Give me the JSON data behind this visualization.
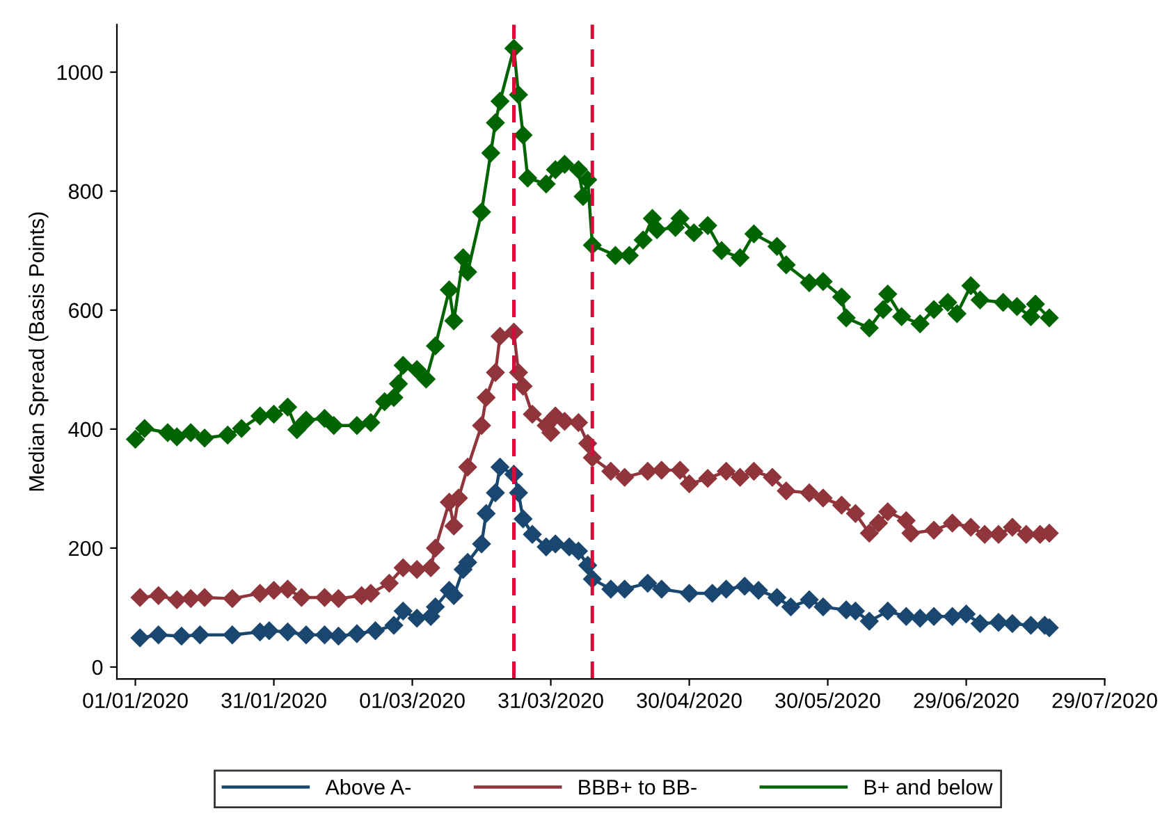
{
  "chart_data": {
    "type": "line",
    "ylabel": "Median Spread (Basis Points)",
    "marker": "diamond",
    "line_style": "solid",
    "grid": false,
    "legend": "bottom",
    "xlim": [
      "2019-12-28",
      "2020-07-29"
    ],
    "xticks": [
      {
        "value": "2020-01-01",
        "label": "01/01/2020"
      },
      {
        "value": "2020-01-31",
        "label": "31/01/2020"
      },
      {
        "value": "2020-03-01",
        "label": "01/03/2020"
      },
      {
        "value": "2020-03-31",
        "label": "31/03/2020"
      },
      {
        "value": "2020-04-30",
        "label": "30/04/2020"
      },
      {
        "value": "2020-05-30",
        "label": "30/05/2020"
      },
      {
        "value": "2020-06-29",
        "label": "29/06/2020"
      },
      {
        "value": "2020-07-29",
        "label": "29/07/2020"
      }
    ],
    "ylim": [
      -20,
      1080
    ],
    "yticks": [
      0,
      200,
      400,
      600,
      800,
      1000
    ],
    "ref_lines": [
      {
        "axis": "x",
        "value": "2020-03-23",
        "color": "#d0103a",
        "line_style": "dashed"
      },
      {
        "axis": "x",
        "value": "2020-04-09",
        "color": "#d0103a",
        "line_style": "dashed"
      }
    ],
    "series": [
      {
        "name": "Above A-",
        "color": "#1a476f",
        "x": [
          "2020-01-02",
          "2020-01-06",
          "2020-01-11",
          "2020-01-15",
          "2020-01-22",
          "2020-01-28",
          "2020-01-30",
          "2020-02-03",
          "2020-02-07",
          "2020-02-11",
          "2020-02-14",
          "2020-02-18",
          "2020-02-22",
          "2020-02-26",
          "2020-02-28",
          "2020-03-02",
          "2020-03-05",
          "2020-03-06",
          "2020-03-09",
          "2020-03-10",
          "2020-03-12",
          "2020-03-13",
          "2020-03-16",
          "2020-03-17",
          "2020-03-19",
          "2020-03-20",
          "2020-03-23",
          "2020-03-24",
          "2020-03-25",
          "2020-03-27",
          "2020-03-30",
          "2020-04-01",
          "2020-04-04",
          "2020-04-06",
          "2020-04-08",
          "2020-04-09",
          "2020-04-13",
          "2020-04-16",
          "2020-04-21",
          "2020-04-24",
          "2020-04-30",
          "2020-05-05",
          "2020-05-08",
          "2020-05-12",
          "2020-05-15",
          "2020-05-19",
          "2020-05-22",
          "2020-05-26",
          "2020-05-29",
          "2020-06-03",
          "2020-06-05",
          "2020-06-08",
          "2020-06-12",
          "2020-06-16",
          "2020-06-19",
          "2020-06-22",
          "2020-06-26",
          "2020-06-29",
          "2020-07-02",
          "2020-07-06",
          "2020-07-09",
          "2020-07-13",
          "2020-07-16",
          "2020-07-17"
        ],
        "values": [
          49,
          54,
          52,
          54,
          54,
          59,
          61,
          59,
          54,
          54,
          52,
          56,
          61,
          70,
          94,
          82,
          85,
          101,
          129,
          120,
          164,
          176,
          207,
          258,
          293,
          336,
          324,
          293,
          249,
          223,
          202,
          207,
          202,
          195,
          171,
          148,
          131,
          131,
          141,
          131,
          124,
          124,
          131,
          136,
          129,
          117,
          101,
          113,
          101,
          96,
          94,
          77,
          94,
          85,
          82,
          85,
          85,
          89,
          73,
          75,
          73,
          70,
          70,
          66
        ]
      },
      {
        "name": "BBB+ to BB-",
        "color": "#90353b",
        "x": [
          "2020-01-02",
          "2020-01-06",
          "2020-01-10",
          "2020-01-13",
          "2020-01-16",
          "2020-01-22",
          "2020-01-28",
          "2020-01-31",
          "2020-02-03",
          "2020-02-06",
          "2020-02-11",
          "2020-02-14",
          "2020-02-19",
          "2020-02-21",
          "2020-02-25",
          "2020-02-28",
          "2020-03-02",
          "2020-03-05",
          "2020-03-06",
          "2020-03-09",
          "2020-03-10",
          "2020-03-11",
          "2020-03-13",
          "2020-03-16",
          "2020-03-17",
          "2020-03-19",
          "2020-03-20",
          "2020-03-23",
          "2020-03-24",
          "2020-03-25",
          "2020-03-27",
          "2020-03-30",
          "2020-03-31",
          "2020-04-01",
          "2020-04-03",
          "2020-04-06",
          "2020-04-08",
          "2020-04-09",
          "2020-04-13",
          "2020-04-16",
          "2020-04-21",
          "2020-04-24",
          "2020-04-28",
          "2020-04-30",
          "2020-05-04",
          "2020-05-08",
          "2020-05-11",
          "2020-05-14",
          "2020-05-18",
          "2020-05-21",
          "2020-05-26",
          "2020-05-29",
          "2020-06-02",
          "2020-06-05",
          "2020-06-08",
          "2020-06-10",
          "2020-06-12",
          "2020-06-16",
          "2020-06-17",
          "2020-06-22",
          "2020-06-26",
          "2020-06-30",
          "2020-07-03",
          "2020-07-06",
          "2020-07-09",
          "2020-07-12",
          "2020-07-15",
          "2020-07-17"
        ],
        "values": [
          117,
          120,
          113,
          115,
          117,
          115,
          124,
          129,
          131,
          117,
          117,
          115,
          120,
          124,
          141,
          167,
          164,
          167,
          200,
          277,
          237,
          284,
          336,
          406,
          453,
          495,
          556,
          563,
          495,
          472,
          425,
          406,
          394,
          422,
          413,
          411,
          376,
          352,
          329,
          319,
          329,
          331,
          331,
          308,
          317,
          329,
          319,
          329,
          319,
          296,
          293,
          284,
          272,
          258,
          225,
          242,
          261,
          246,
          225,
          230,
          242,
          235,
          223,
          223,
          235,
          223,
          223,
          225
        ]
      },
      {
        "name": "B+ and below",
        "color": "#006400",
        "x": [
          "2020-01-01",
          "2020-01-03",
          "2020-01-08",
          "2020-01-10",
          "2020-01-13",
          "2020-01-16",
          "2020-01-21",
          "2020-01-24",
          "2020-01-28",
          "2020-01-31",
          "2020-02-03",
          "2020-02-05",
          "2020-02-07",
          "2020-02-11",
          "2020-02-13",
          "2020-02-18",
          "2020-02-21",
          "2020-02-24",
          "2020-02-26",
          "2020-02-27",
          "2020-02-28",
          "2020-03-02",
          "2020-03-04",
          "2020-03-06",
          "2020-03-09",
          "2020-03-10",
          "2020-03-12",
          "2020-03-13",
          "2020-03-16",
          "2020-03-18",
          "2020-03-19",
          "2020-03-20",
          "2020-03-23",
          "2020-03-24",
          "2020-03-25",
          "2020-03-26",
          "2020-03-30",
          "2020-04-01",
          "2020-04-03",
          "2020-04-06",
          "2020-04-07",
          "2020-04-08",
          "2020-04-09",
          "2020-04-14",
          "2020-04-17",
          "2020-04-20",
          "2020-04-22",
          "2020-04-23",
          "2020-04-27",
          "2020-04-28",
          "2020-05-01",
          "2020-05-04",
          "2020-05-07",
          "2020-05-11",
          "2020-05-14",
          "2020-05-19",
          "2020-05-21",
          "2020-05-26",
          "2020-05-29",
          "2020-06-02",
          "2020-06-03",
          "2020-06-08",
          "2020-06-11",
          "2020-06-12",
          "2020-06-15",
          "2020-06-19",
          "2020-06-22",
          "2020-06-25",
          "2020-06-27",
          "2020-06-30",
          "2020-07-02",
          "2020-07-07",
          "2020-07-10",
          "2020-07-13",
          "2020-07-14",
          "2020-07-17"
        ],
        "values": [
          383,
          401,
          394,
          387,
          394,
          385,
          390,
          401,
          422,
          425,
          437,
          399,
          415,
          418,
          406,
          406,
          411,
          446,
          453,
          476,
          507,
          500,
          484,
          540,
          634,
          582,
          688,
          664,
          765,
          864,
          915,
          951,
          1040,
          962,
          894,
          822,
          812,
          836,
          845,
          836,
          791,
          819,
          709,
          692,
          692,
          718,
          754,
          735,
          739,
          754,
          730,
          742,
          700,
          688,
          728,
          707,
          676,
          646,
          648,
          622,
          587,
          570,
          601,
          627,
          589,
          577,
          601,
          613,
          594,
          641,
          617,
          613,
          606,
          589,
          610,
          587
        ]
      }
    ]
  }
}
